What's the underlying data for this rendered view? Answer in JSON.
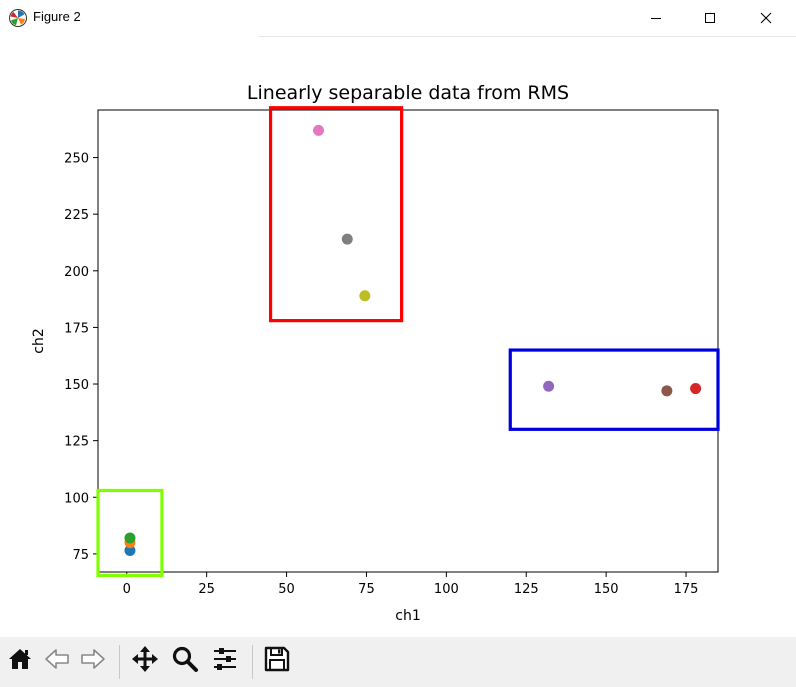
{
  "window": {
    "title": "Figure 2",
    "icon": "matplotlib-logo-icon",
    "controls": [
      "minimize-icon",
      "maximize-icon",
      "close-icon"
    ]
  },
  "toolbar": {
    "buttons": [
      "home-icon",
      "back-arrow-icon",
      "forward-arrow-icon",
      "pan-icon",
      "zoom-icon",
      "configure-subplots-icon",
      "save-icon"
    ]
  },
  "colors": {
    "c0": "#1f77b4",
    "c1": "#ff7f0e",
    "c2": "#2ca02c",
    "c3": "#d62728",
    "c4": "#9467bd",
    "c5": "#8c564b",
    "c6": "#e377c2",
    "c7": "#7f7f7f",
    "c8": "#bcbd22",
    "box_red": "#ff0000",
    "box_blue": "#0000dd",
    "box_green": "#80ff00"
  },
  "chart_data": {
    "type": "scatter",
    "title": "Linearly separable data from RMS",
    "xlabel": "ch1",
    "ylabel": "ch2",
    "xlim": [
      -9,
      185
    ],
    "ylim": [
      67,
      271
    ],
    "x_ticks": [
      0,
      25,
      50,
      75,
      100,
      125,
      150,
      175
    ],
    "y_ticks": [
      75,
      100,
      125,
      150,
      175,
      200,
      225,
      250
    ],
    "x_tick_labels": [
      "0",
      "25",
      "50",
      "75",
      "100",
      "125",
      "150",
      "175"
    ],
    "y_tick_labels": [
      "75",
      "100",
      "125",
      "150",
      "175",
      "200",
      "225",
      "250"
    ],
    "grid": false,
    "points": [
      {
        "x": 1,
        "y": 76.5,
        "color": "#1f77b4"
      },
      {
        "x": 1,
        "y": 80,
        "color": "#ff7f0e"
      },
      {
        "x": 1,
        "y": 82,
        "color": "#2ca02c"
      },
      {
        "x": 178,
        "y": 148,
        "color": "#d62728"
      },
      {
        "x": 132,
        "y": 149,
        "color": "#9467bd"
      },
      {
        "x": 169,
        "y": 147,
        "color": "#8c564b"
      },
      {
        "x": 60,
        "y": 262,
        "color": "#e377c2"
      },
      {
        "x": 69,
        "y": 214,
        "color": "#7f7f7f"
      },
      {
        "x": 74.5,
        "y": 189,
        "color": "#bcbd22"
      }
    ],
    "annotations": [
      {
        "shape": "rectangle",
        "x0": 45,
        "x1": 86,
        "y0": 178,
        "y1": 272,
        "color": "#ff0000"
      },
      {
        "shape": "rectangle",
        "x0": 120,
        "x1": 185,
        "y0": 130,
        "y1": 165,
        "color": "#0000dd"
      },
      {
        "shape": "rectangle",
        "x0": -9,
        "x1": 11,
        "y0": 65.5,
        "y1": 103,
        "color": "#80ff00"
      }
    ]
  }
}
